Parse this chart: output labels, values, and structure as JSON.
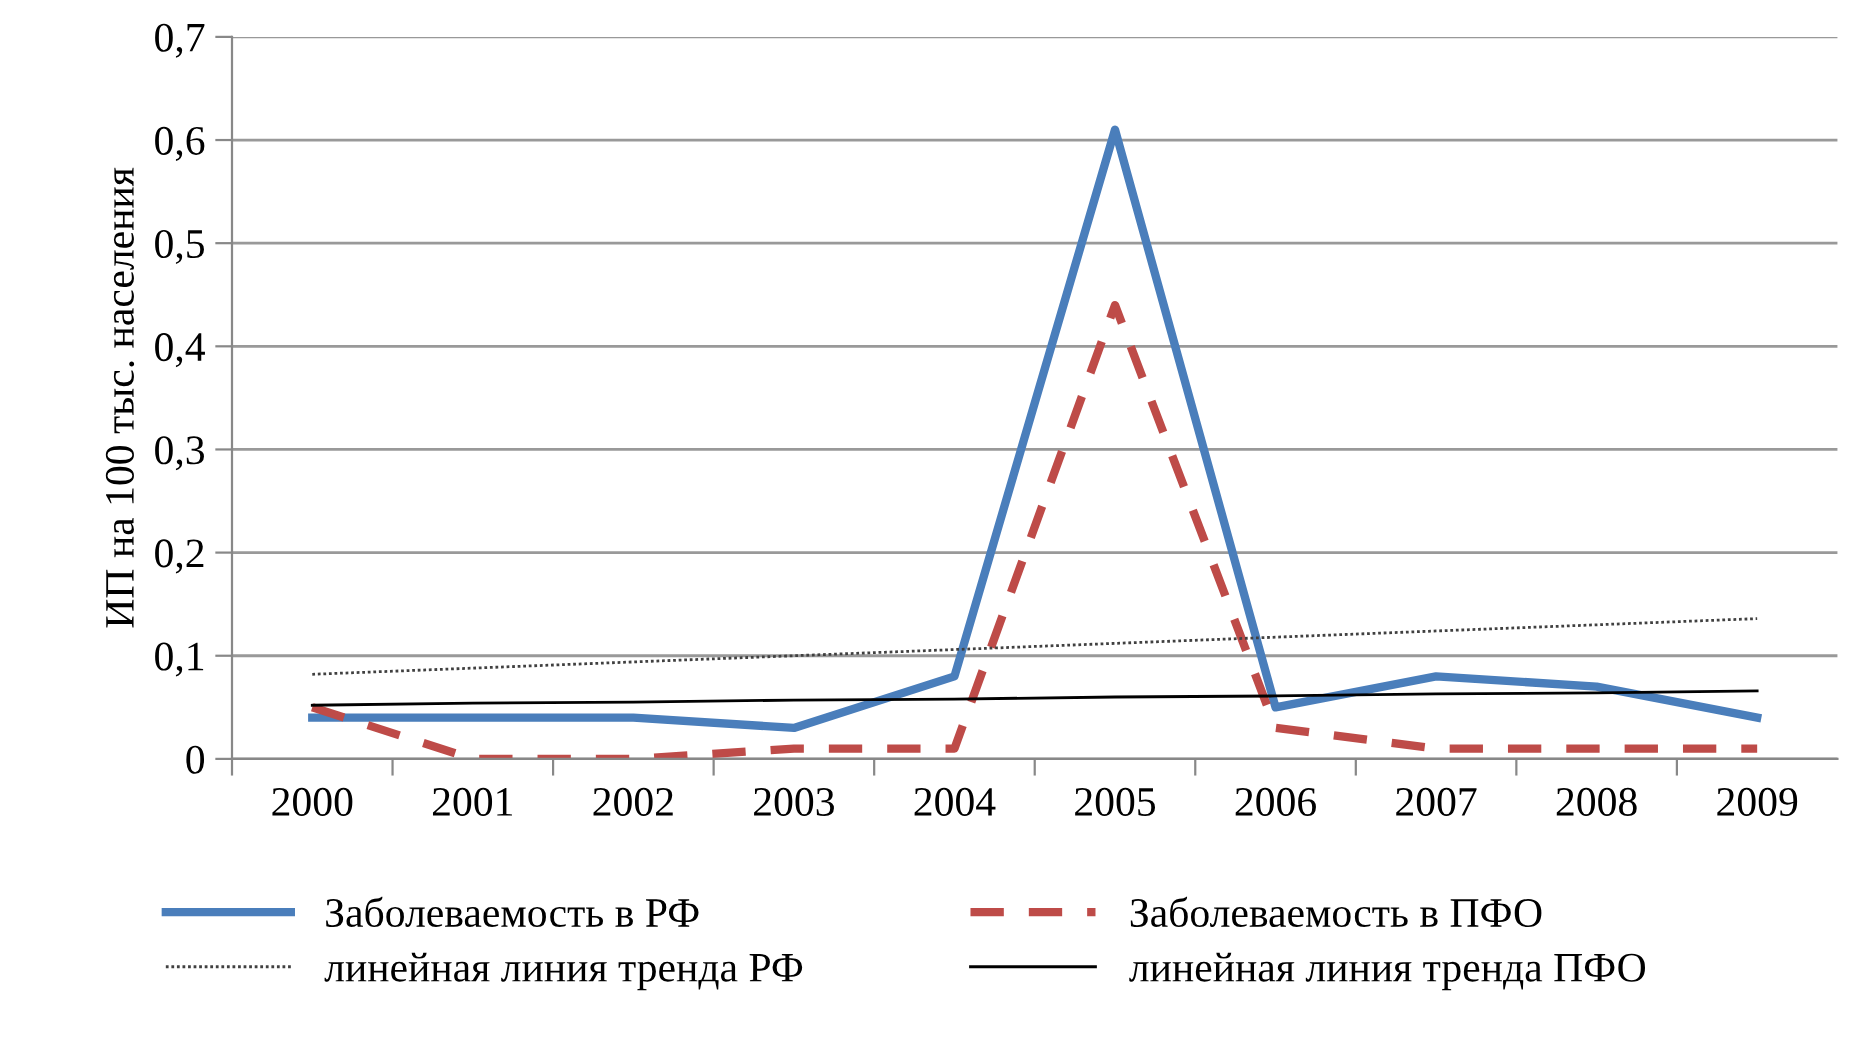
{
  "chart_data": {
    "type": "line",
    "ylabel": "ИП на 100 тыс. населения",
    "categories": [
      "2000",
      "2001",
      "2002",
      "2003",
      "2004",
      "2005",
      "2006",
      "2007",
      "2008",
      "2009"
    ],
    "series": [
      {
        "name": "Заболеваемость в РФ",
        "color": "#4a7ebb",
        "line_style": "solid",
        "values": [
          0.04,
          0.04,
          0.04,
          0.03,
          0.08,
          0.61,
          0.05,
          0.08,
          0.07,
          0.04
        ]
      },
      {
        "name": "Заболеваемость в ПФО",
        "color": "#be4b48",
        "line_style": "dashed",
        "values": [
          0.05,
          0,
          0,
          0.01,
          0.01,
          0.44,
          0.03,
          0.01,
          0.01,
          0.01
        ]
      },
      {
        "name": "линейная линия тренда РФ",
        "color": "#404040",
        "line_style": "dotted",
        "values": [
          0.082,
          0.088,
          0.094,
          0.1,
          0.106,
          0.112,
          0.118,
          0.124,
          0.13,
          0.136
        ]
      },
      {
        "name": "линейная линия тренда ПФО",
        "color": "#000000",
        "line_style": "solid",
        "values": [
          0.052,
          0.054,
          0.055,
          0.057,
          0.058,
          0.06,
          0.061,
          0.063,
          0.064,
          0.066
        ]
      }
    ],
    "ylim": [
      0,
      0.7
    ],
    "yticks": [
      0,
      {
        "value": 0.1,
        "label": "0,1"
      },
      {
        "value": 0.2,
        "label": "0,2"
      },
      {
        "value": 0.3,
        "label": "0,3"
      },
      {
        "value": 0.4,
        "label": "0,4"
      },
      {
        "value": 0.5,
        "label": "0,5"
      },
      {
        "value": 0.6,
        "label": "0,6"
      },
      {
        "value": 0.7,
        "label": "0,7"
      }
    ],
    "grid": "y",
    "legend": "bottom",
    "marker": "none"
  }
}
